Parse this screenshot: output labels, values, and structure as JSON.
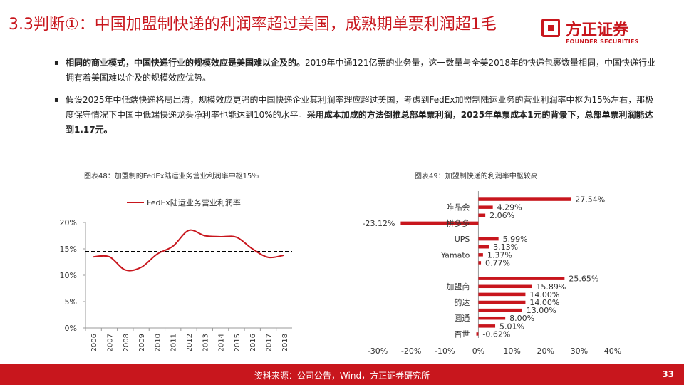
{
  "header": {
    "title": "3.3判断①：中国加盟制快递的利润率超过美国，成熟期单票利润超1毛",
    "logo_cn": "方正证券",
    "logo_en": "FOUNDER SECURITIES"
  },
  "bullets": [
    {
      "bold": "相同的商业模式，中国快递行业的规模效应是美国难以企及的。",
      "text": "2019年中通121亿票的业务量，这一数量与全美2018年的快递包裹数量相同，中国快递行业拥有着美国难以企及的规模效应优势。",
      "tail_bold": ""
    },
    {
      "bold": "",
      "text": "假设2025年中低端快递格局出清，规模效应更强的中国快递企业其利润率理应超过美国，考虑到FedEx加盟制陆运业务的营业利润率中枢为15%左右，那极度保守情况下中国中低端快递龙头净利率也能达到10%的水平。",
      "tail_bold": "采用成本加成的方法倒推总部单票利润，2025年单票成本1元的背景下，总部单票利润能达到1.17元。"
    }
  ],
  "chart_left": {
    "caption": "图表48：加盟制的FedEx陆运业务营业利润率中枢15％",
    "chart_data": {
      "type": "line",
      "x": [
        "2006",
        "2007",
        "2008",
        "2009",
        "2010",
        "2011",
        "2012",
        "2013",
        "2014",
        "2015",
        "2016",
        "2017",
        "2018"
      ],
      "series": [
        {
          "name": "FedEx陆运业务营业利润率",
          "values": [
            13.5,
            13.5,
            11.0,
            11.5,
            14.0,
            15.5,
            18.5,
            17.5,
            17.3,
            17.2,
            15.0,
            13.4,
            13.8
          ],
          "color": "#c8161d"
        }
      ],
      "reference_line": 14.5,
      "ylim": [
        0,
        20
      ],
      "yticks": [
        "0%",
        "5%",
        "10%",
        "15%",
        "20%"
      ],
      "ytick_values": [
        0,
        5,
        10,
        15,
        20
      ],
      "legend": "top-left",
      "grid": false
    }
  },
  "chart_right": {
    "caption": "图表49：加盟制快递的利润率中枢较高",
    "chart_data": {
      "type": "bar",
      "orientation": "horizontal",
      "bars": [
        {
          "label": "",
          "value": 27.54,
          "text": "27.54%"
        },
        {
          "label": "唯品会",
          "value": 4.29,
          "text": "4.29%"
        },
        {
          "label": "",
          "value": 2.06,
          "text": "2.06%"
        },
        {
          "label": "拼多多",
          "value": -23.12,
          "text": "-23.12%"
        },
        {
          "label": "",
          "value": 0,
          "text": ""
        },
        {
          "label": "UPS",
          "value": 5.99,
          "text": "5.99%"
        },
        {
          "label": "",
          "value": 3.13,
          "text": "3.13%"
        },
        {
          "label": "Yamato",
          "value": 1.37,
          "text": "1.37%"
        },
        {
          "label": "",
          "value": 0.77,
          "text": "0.77%"
        },
        {
          "label": "",
          "value": 0,
          "text": ""
        },
        {
          "label": "",
          "value": 25.65,
          "text": "25.65%"
        },
        {
          "label": "加盟商",
          "value": 15.89,
          "text": "15.89%"
        },
        {
          "label": "",
          "value": 14.0,
          "text": "14.00%"
        },
        {
          "label": "韵达",
          "value": 14.0,
          "text": "14.00%"
        },
        {
          "label": "",
          "value": 13.0,
          "text": "13.00%"
        },
        {
          "label": "圆通",
          "value": 8.0,
          "text": "8.00%"
        },
        {
          "label": "",
          "value": 5.01,
          "text": "5.01%"
        },
        {
          "label": "百世",
          "value": -0.62,
          "text": "-0.62%"
        }
      ],
      "xlim": [
        -30,
        40
      ],
      "xticks": [
        "-30%",
        "-20%",
        "-10%",
        "0%",
        "10%",
        "20%",
        "30%",
        "40%"
      ],
      "xtick_values": [
        -30,
        -20,
        -10,
        0,
        10,
        20,
        30,
        40
      ],
      "color": "#c8161d"
    }
  },
  "footer": {
    "source": "资料来源：公司公告，Wind，方正证券研究所",
    "page": "33"
  }
}
